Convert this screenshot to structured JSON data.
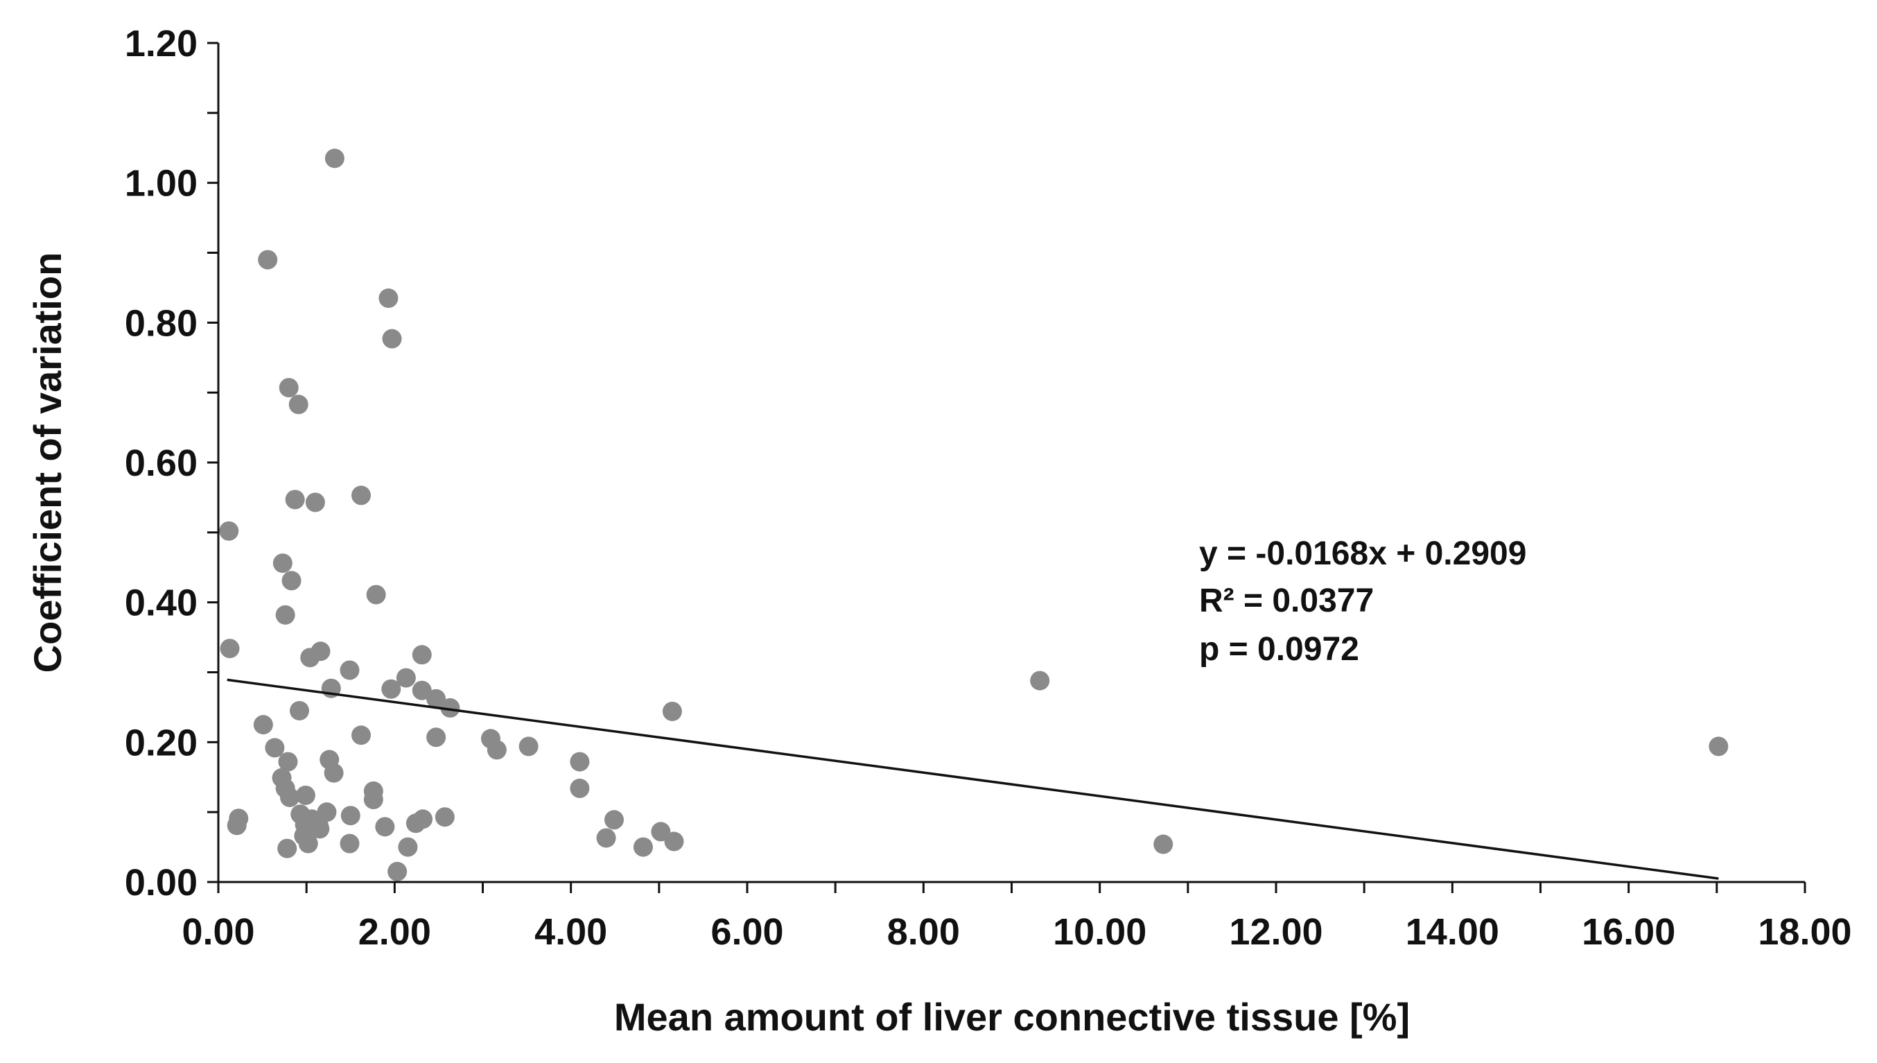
{
  "chart_data": {
    "type": "scatter",
    "title": "",
    "xlabel": "Mean amount of liver connective tissue [%]",
    "ylabel": "Coefficient of variation",
    "xlim": [
      0,
      18
    ],
    "ylim": [
      0,
      1.2
    ],
    "xticks": [
      0,
      2,
      4,
      6,
      8,
      10,
      12,
      14,
      16,
      18
    ],
    "yticks": [
      0,
      0.2,
      0.4,
      0.6,
      0.8,
      1.0,
      1.2
    ],
    "xtick_labels": [
      "0.00",
      "2.00",
      "4.00",
      "6.00",
      "8.00",
      "10.00",
      "12.00",
      "14.00",
      "16.00",
      "18.00"
    ],
    "ytick_labels": [
      "0.00",
      "0.20",
      "0.40",
      "0.60",
      "0.80",
      "1.00",
      "1.20"
    ],
    "grid": false,
    "marker_color": "#8a8a8a",
    "line_color": "#111111",
    "points": [
      [
        1.32,
        1.035
      ],
      [
        0.56,
        0.89
      ],
      [
        1.93,
        0.835
      ],
      [
        1.97,
        0.777
      ],
      [
        0.8,
        0.707
      ],
      [
        0.91,
        0.683
      ],
      [
        1.62,
        0.553
      ],
      [
        0.87,
        0.547
      ],
      [
        1.1,
        0.543
      ],
      [
        0.12,
        0.502
      ],
      [
        0.73,
        0.456
      ],
      [
        0.83,
        0.431
      ],
      [
        1.79,
        0.411
      ],
      [
        0.76,
        0.382
      ],
      [
        0.13,
        0.334
      ],
      [
        1.16,
        0.33
      ],
      [
        1.04,
        0.321
      ],
      [
        2.31,
        0.325
      ],
      [
        1.49,
        0.303
      ],
      [
        2.13,
        0.292
      ],
      [
        1.28,
        0.277
      ],
      [
        1.96,
        0.276
      ],
      [
        2.31,
        0.274
      ],
      [
        2.47,
        0.262
      ],
      [
        2.63,
        0.249
      ],
      [
        0.92,
        0.245
      ],
      [
        5.15,
        0.244
      ],
      [
        9.32,
        0.288
      ],
      [
        0.51,
        0.225
      ],
      [
        1.62,
        0.21
      ],
      [
        2.47,
        0.207
      ],
      [
        3.09,
        0.205
      ],
      [
        3.16,
        0.189
      ],
      [
        3.52,
        0.194
      ],
      [
        0.64,
        0.192
      ],
      [
        17.02,
        0.194
      ],
      [
        0.79,
        0.172
      ],
      [
        1.26,
        0.175
      ],
      [
        4.1,
        0.172
      ],
      [
        1.31,
        0.156
      ],
      [
        0.72,
        0.149
      ],
      [
        0.76,
        0.134
      ],
      [
        1.76,
        0.13
      ],
      [
        4.1,
        0.134
      ],
      [
        0.81,
        0.121
      ],
      [
        0.99,
        0.124
      ],
      [
        1.76,
        0.118
      ],
      [
        0.93,
        0.097
      ],
      [
        1.23,
        0.1
      ],
      [
        1.5,
        0.095
      ],
      [
        2.57,
        0.093
      ],
      [
        0.23,
        0.091
      ],
      [
        2.32,
        0.09
      ],
      [
        2.24,
        0.084
      ],
      [
        1.06,
        0.09
      ],
      [
        0.98,
        0.082
      ],
      [
        4.49,
        0.089
      ],
      [
        1.14,
        0.081
      ],
      [
        0.21,
        0.081
      ],
      [
        1.89,
        0.079
      ],
      [
        1.15,
        0.076
      ],
      [
        5.02,
        0.072
      ],
      [
        0.97,
        0.066
      ],
      [
        4.4,
        0.063
      ],
      [
        5.17,
        0.058
      ],
      [
        1.49,
        0.055
      ],
      [
        1.02,
        0.055
      ],
      [
        10.72,
        0.054
      ],
      [
        2.15,
        0.05
      ],
      [
        4.82,
        0.05
      ],
      [
        0.78,
        0.048
      ],
      [
        2.03,
        0.015
      ]
    ],
    "trendline": {
      "slope": -0.0168,
      "intercept": 0.2909,
      "x_range": [
        0.1,
        17.02
      ]
    },
    "annotations": [
      "y = -0.0168x + 0.2909",
      "R² = 0.0377",
      "p = 0.0972"
    ]
  }
}
